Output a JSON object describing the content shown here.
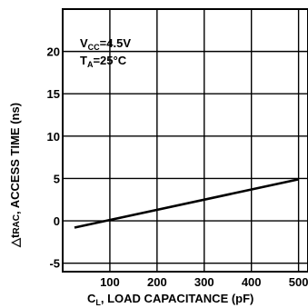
{
  "chart_data": {
    "type": "line",
    "xlabel_main": "C",
    "xlabel_sub": "L",
    "xlabel_rest": ", LOAD CAPACITANCE (pF)",
    "ylabel_main": "△t",
    "ylabel_sub": "RAC",
    "ylabel_rest": ", ACCESS TIME (ns)",
    "xlim": [
      0,
      520
    ],
    "ylim": [
      -6,
      25
    ],
    "x_ticks": [
      100,
      200,
      300,
      400,
      500
    ],
    "y_ticks": [
      -5,
      0,
      5,
      10,
      15,
      20
    ],
    "x_tick_labels": [
      "100",
      "200",
      "300",
      "400",
      "500"
    ],
    "y_tick_labels": [
      "-5",
      "0",
      "5",
      "10",
      "15",
      "20"
    ],
    "grid": true,
    "annotations": {
      "vcc_main": "V",
      "vcc_sub": "CC",
      "vcc_rest": "=4.5V",
      "ta_main": "T",
      "ta_sub": "A",
      "ta_rest": "=25°C"
    },
    "series": [
      {
        "x": [
          25,
          500
        ],
        "y": [
          -0.8,
          4.9
        ]
      }
    ]
  }
}
